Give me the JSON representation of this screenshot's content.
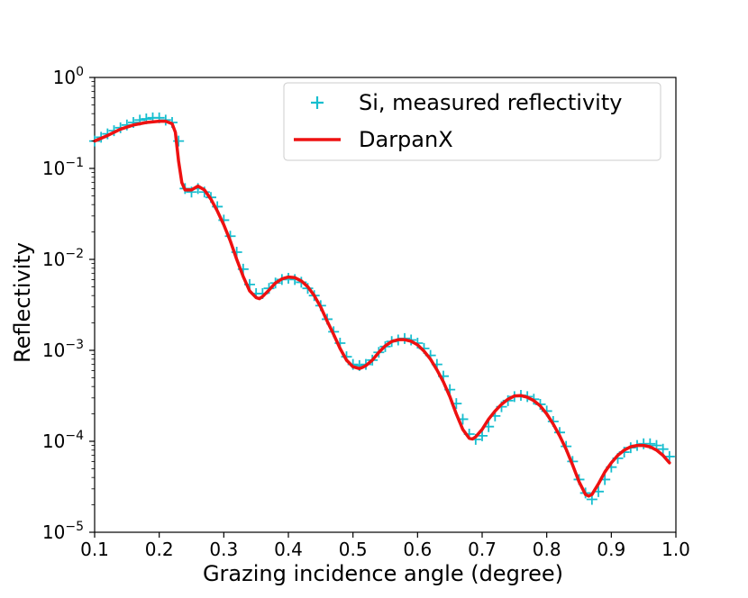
{
  "colors": {
    "measured": "#17becf",
    "model": "#ee1111",
    "axis": "#000000",
    "legend_border": "#cccccc"
  },
  "chart_data": {
    "type": "line",
    "xlabel": "Grazing incidence angle (degree)",
    "ylabel": "Reflectivity",
    "xlim": [
      0.1,
      1.0
    ],
    "ylim": [
      1e-05,
      1
    ],
    "yscale": "log",
    "grid": false,
    "legend_position": "top-right",
    "x_ticks": [
      {
        "value": 0.1,
        "label": "0.1"
      },
      {
        "value": 0.2,
        "label": "0.2"
      },
      {
        "value": 0.3,
        "label": "0.3"
      },
      {
        "value": 0.4,
        "label": "0.4"
      },
      {
        "value": 0.5,
        "label": "0.5"
      },
      {
        "value": 0.6,
        "label": "0.6"
      },
      {
        "value": 0.7,
        "label": "0.7"
      },
      {
        "value": 0.8,
        "label": "0.8"
      },
      {
        "value": 0.9,
        "label": "0.9"
      },
      {
        "value": 1.0,
        "label": "1.0"
      }
    ],
    "y_ticks": [
      {
        "value": 1e-05,
        "base": "10",
        "exp": "−5"
      },
      {
        "value": 0.0001,
        "base": "10",
        "exp": "−4"
      },
      {
        "value": 0.001,
        "base": "10",
        "exp": "−3"
      },
      {
        "value": 0.01,
        "base": "10",
        "exp": "−2"
      },
      {
        "value": 0.1,
        "base": "10",
        "exp": "−1"
      },
      {
        "value": 1,
        "base": "10",
        "exp": "0"
      }
    ],
    "series": [
      {
        "name": "Si, measured reflectivity",
        "style": "marker-plus",
        "x": [
          0.1,
          0.11,
          0.12,
          0.13,
          0.14,
          0.15,
          0.16,
          0.17,
          0.18,
          0.19,
          0.2,
          0.21,
          0.22,
          0.23,
          0.24,
          0.25,
          0.26,
          0.27,
          0.28,
          0.29,
          0.3,
          0.31,
          0.32,
          0.33,
          0.34,
          0.35,
          0.36,
          0.37,
          0.38,
          0.39,
          0.4,
          0.41,
          0.42,
          0.43,
          0.44,
          0.45,
          0.46,
          0.47,
          0.48,
          0.49,
          0.5,
          0.51,
          0.52,
          0.53,
          0.54,
          0.55,
          0.56,
          0.57,
          0.58,
          0.59,
          0.6,
          0.61,
          0.62,
          0.63,
          0.64,
          0.65,
          0.66,
          0.67,
          0.68,
          0.69,
          0.7,
          0.71,
          0.72,
          0.73,
          0.74,
          0.75,
          0.76,
          0.77,
          0.78,
          0.79,
          0.8,
          0.81,
          0.82,
          0.83,
          0.84,
          0.85,
          0.86,
          0.87,
          0.88,
          0.89,
          0.9,
          0.91,
          0.92,
          0.93,
          0.94,
          0.95,
          0.96,
          0.97,
          0.98,
          0.99
        ],
        "y": [
          0.2,
          0.22,
          0.24,
          0.26,
          0.28,
          0.3,
          0.32,
          0.34,
          0.35,
          0.36,
          0.36,
          0.34,
          0.32,
          0.2,
          0.06,
          0.055,
          0.06,
          0.055,
          0.048,
          0.038,
          0.027,
          0.018,
          0.012,
          0.0078,
          0.0053,
          0.0042,
          0.0042,
          0.0048,
          0.0055,
          0.006,
          0.0062,
          0.006,
          0.0056,
          0.0048,
          0.004,
          0.0031,
          0.0022,
          0.0016,
          0.0012,
          0.00085,
          0.0007,
          0.00068,
          0.0007,
          0.00078,
          0.00095,
          0.0011,
          0.00125,
          0.0013,
          0.00135,
          0.0013,
          0.0012,
          0.00105,
          0.00088,
          0.0007,
          0.00052,
          0.00037,
          0.00026,
          0.000175,
          0.00012,
          0.000105,
          0.000115,
          0.000145,
          0.00019,
          0.00024,
          0.00028,
          0.00031,
          0.00032,
          0.00031,
          0.00029,
          0.000255,
          0.000215,
          0.000165,
          0.000125,
          8.8e-05,
          6e-05,
          3.8e-05,
          2.7e-05,
          2.3e-05,
          2.8e-05,
          3.8e-05,
          5.2e-05,
          6.5e-05,
          7.6e-05,
          8.5e-05,
          9e-05,
          9.4e-05,
          9.4e-05,
          9e-05,
          8.2e-05,
          6.8e-05
        ]
      },
      {
        "name": "DarpanX",
        "style": "line",
        "x": [
          0.1,
          0.12,
          0.14,
          0.16,
          0.18,
          0.2,
          0.21,
          0.22,
          0.225,
          0.23,
          0.235,
          0.24,
          0.25,
          0.26,
          0.27,
          0.28,
          0.29,
          0.3,
          0.31,
          0.32,
          0.33,
          0.34,
          0.35,
          0.355,
          0.36,
          0.37,
          0.38,
          0.39,
          0.4,
          0.41,
          0.42,
          0.43,
          0.44,
          0.45,
          0.46,
          0.47,
          0.48,
          0.49,
          0.5,
          0.51,
          0.515,
          0.52,
          0.53,
          0.54,
          0.55,
          0.56,
          0.57,
          0.58,
          0.59,
          0.6,
          0.61,
          0.62,
          0.63,
          0.64,
          0.65,
          0.66,
          0.67,
          0.68,
          0.685,
          0.69,
          0.7,
          0.71,
          0.72,
          0.73,
          0.74,
          0.75,
          0.76,
          0.77,
          0.78,
          0.79,
          0.8,
          0.81,
          0.82,
          0.83,
          0.84,
          0.85,
          0.86,
          0.865,
          0.87,
          0.88,
          0.89,
          0.9,
          0.91,
          0.92,
          0.93,
          0.94,
          0.95,
          0.96,
          0.97,
          0.98,
          0.99
        ],
        "y": [
          0.2,
          0.23,
          0.27,
          0.3,
          0.32,
          0.33,
          0.33,
          0.31,
          0.25,
          0.12,
          0.07,
          0.058,
          0.058,
          0.064,
          0.058,
          0.046,
          0.034,
          0.024,
          0.016,
          0.01,
          0.0065,
          0.0045,
          0.0038,
          0.0037,
          0.0039,
          0.0046,
          0.0055,
          0.0061,
          0.0064,
          0.0063,
          0.0058,
          0.005,
          0.004,
          0.003,
          0.0021,
          0.0015,
          0.00105,
          0.00078,
          0.00066,
          0.00063,
          0.00065,
          0.00068,
          0.00078,
          0.00095,
          0.00112,
          0.00125,
          0.00131,
          0.00131,
          0.00126,
          0.00115,
          0.00098,
          0.0008,
          0.00061,
          0.00045,
          0.00031,
          0.0002,
          0.000135,
          0.000108,
          0.000106,
          0.000112,
          0.000135,
          0.000175,
          0.000215,
          0.000255,
          0.00029,
          0.000315,
          0.000318,
          0.000305,
          0.00028,
          0.000245,
          0.0002,
          0.000155,
          0.000115,
          8.2e-05,
          5.5e-05,
          3.6e-05,
          2.6e-05,
          2.5e-05,
          2.6e-05,
          3.4e-05,
          4.6e-05,
          5.8e-05,
          7e-05,
          8e-05,
          8.7e-05,
          9e-05,
          9e-05,
          8.7e-05,
          8e-05,
          7e-05,
          5.8e-05
        ]
      }
    ]
  }
}
